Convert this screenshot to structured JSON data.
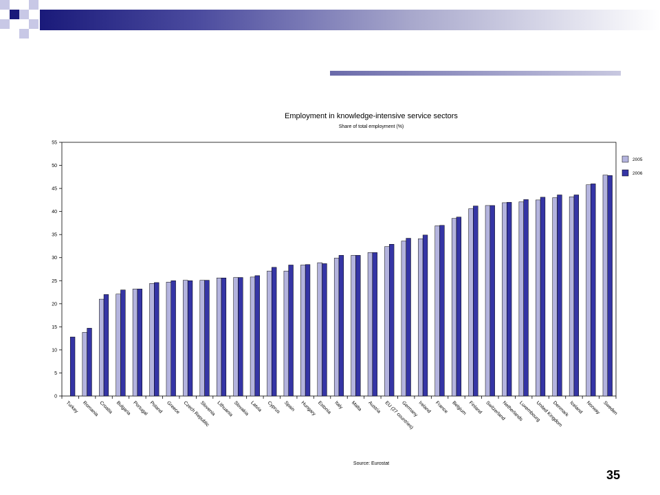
{
  "slide": {
    "page_number": "35",
    "accent_colors": [
      "#1a1a7a",
      "#a8a8cc",
      "#c8c8e0"
    ]
  },
  "chart_data": {
    "type": "bar",
    "title": "Employment in knowledge-intensive service sectors",
    "subtitle": "Share of total employment (%)",
    "source": "Source: Eurostat",
    "ylim": [
      0,
      55
    ],
    "yticks": [
      0,
      5,
      10,
      15,
      20,
      25,
      30,
      35,
      40,
      45,
      50,
      55
    ],
    "legend_position": "right",
    "grid": false,
    "categories": [
      "Turkey",
      "Romania",
      "Croatia",
      "Bulgaria",
      "Portugal",
      "Poland",
      "Greece",
      "Czech Republic",
      "Slovenia",
      "Lithuania",
      "Slovakia",
      "Latvia",
      "Cyprus",
      "Spain",
      "Hungary",
      "Estonia",
      "Italy",
      "Malta",
      "Austria",
      "EU (27 countries)",
      "Germany",
      "Ireland",
      "France",
      "Belgium",
      "Finland",
      "Switzerland",
      "Netherlands",
      "Luxembourg",
      "United Kingdom",
      "Denmark",
      "Iceland",
      "Norway",
      "Sweden"
    ],
    "series": [
      {
        "name": "2005",
        "color": "#b4b4de",
        "values": [
          null,
          13.8,
          21.0,
          22.1,
          23.2,
          24.4,
          24.7,
          25.1,
          25.1,
          25.6,
          25.7,
          25.8,
          27.1,
          27.1,
          28.4,
          28.9,
          29.9,
          30.5,
          31.1,
          32.4,
          33.6,
          34.1,
          36.9,
          38.5,
          40.6,
          41.3,
          41.9,
          42.1,
          42.5,
          43.0,
          43.2,
          45.8,
          47.9
        ]
      },
      {
        "name": "2006",
        "color": "#3535a5",
        "values": [
          12.8,
          14.7,
          22.0,
          23.0,
          23.2,
          24.6,
          25.0,
          25.0,
          25.1,
          25.6,
          25.7,
          26.1,
          27.9,
          28.4,
          28.5,
          28.7,
          30.5,
          30.5,
          31.1,
          32.9,
          34.2,
          34.9,
          37.0,
          38.8,
          41.2,
          41.3,
          42.0,
          42.6,
          43.1,
          43.6,
          43.6,
          46.0,
          47.8
        ]
      }
    ]
  }
}
